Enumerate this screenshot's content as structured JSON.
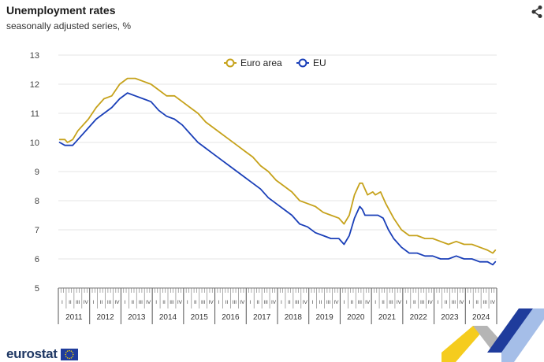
{
  "header": {
    "title": "Unemployment rates",
    "subtitle": "seasonally adjusted series, %"
  },
  "icons": {
    "share": "share-icon",
    "flag": "eu-flag-icon"
  },
  "brand": {
    "name": "eurostat"
  },
  "colors": {
    "euro_area": "#c6a21b",
    "eu": "#1a3fb8",
    "grid": "#e4e4e4",
    "axis_text": "#444444",
    "brand": "#1f3864"
  },
  "chart_data": {
    "type": "line",
    "title": "Unemployment rates",
    "subtitle": "seasonally adjusted series, %",
    "ylim": [
      5,
      13
    ],
    "yticks": [
      5,
      6,
      7,
      8,
      9,
      10,
      11,
      12,
      13
    ],
    "grid": true,
    "legend": "top-center",
    "x_start": "2011-01",
    "x_end": "2024-12",
    "x_frequency": "monthly",
    "quarter_labels": [
      "I",
      "II",
      "III",
      "IV"
    ],
    "year_labels": [
      "2011",
      "2012",
      "2013",
      "2014",
      "2015",
      "2016",
      "2017",
      "2018",
      "2019",
      "2020",
      "2021",
      "2022",
      "2023",
      "2024"
    ],
    "series": [
      {
        "name": "Euro area",
        "points": [
          [
            "2011-01",
            10.1
          ],
          [
            "2011-03",
            10.1
          ],
          [
            "2011-04",
            10.0
          ],
          [
            "2011-06",
            10.1
          ],
          [
            "2011-08",
            10.4
          ],
          [
            "2011-12",
            10.8
          ],
          [
            "2012-03",
            11.2
          ],
          [
            "2012-06",
            11.5
          ],
          [
            "2012-09",
            11.6
          ],
          [
            "2012-12",
            12.0
          ],
          [
            "2013-03",
            12.2
          ],
          [
            "2013-06",
            12.2
          ],
          [
            "2013-09",
            12.1
          ],
          [
            "2013-12",
            12.0
          ],
          [
            "2014-03",
            11.8
          ],
          [
            "2014-06",
            11.6
          ],
          [
            "2014-09",
            11.6
          ],
          [
            "2014-12",
            11.4
          ],
          [
            "2015-03",
            11.2
          ],
          [
            "2015-06",
            11.0
          ],
          [
            "2015-09",
            10.7
          ],
          [
            "2015-12",
            10.5
          ],
          [
            "2016-03",
            10.3
          ],
          [
            "2016-06",
            10.1
          ],
          [
            "2016-09",
            9.9
          ],
          [
            "2016-12",
            9.7
          ],
          [
            "2017-03",
            9.5
          ],
          [
            "2017-06",
            9.2
          ],
          [
            "2017-09",
            9.0
          ],
          [
            "2017-12",
            8.7
          ],
          [
            "2018-03",
            8.5
          ],
          [
            "2018-06",
            8.3
          ],
          [
            "2018-09",
            8.0
          ],
          [
            "2018-12",
            7.9
          ],
          [
            "2019-03",
            7.8
          ],
          [
            "2019-06",
            7.6
          ],
          [
            "2019-09",
            7.5
          ],
          [
            "2019-12",
            7.4
          ],
          [
            "2020-02",
            7.2
          ],
          [
            "2020-04",
            7.5
          ],
          [
            "2020-06",
            8.2
          ],
          [
            "2020-08",
            8.6
          ],
          [
            "2020-09",
            8.6
          ],
          [
            "2020-10",
            8.4
          ],
          [
            "2020-11",
            8.2
          ],
          [
            "2021-01",
            8.3
          ],
          [
            "2021-02",
            8.2
          ],
          [
            "2021-04",
            8.3
          ],
          [
            "2021-06",
            7.9
          ],
          [
            "2021-09",
            7.4
          ],
          [
            "2021-12",
            7.0
          ],
          [
            "2022-03",
            6.8
          ],
          [
            "2022-06",
            6.8
          ],
          [
            "2022-09",
            6.7
          ],
          [
            "2022-12",
            6.7
          ],
          [
            "2023-03",
            6.6
          ],
          [
            "2023-06",
            6.5
          ],
          [
            "2023-09",
            6.6
          ],
          [
            "2023-12",
            6.5
          ],
          [
            "2024-03",
            6.5
          ],
          [
            "2024-06",
            6.4
          ],
          [
            "2024-09",
            6.3
          ],
          [
            "2024-11",
            6.2
          ],
          [
            "2024-12",
            6.3
          ]
        ]
      },
      {
        "name": "EU",
        "points": [
          [
            "2011-01",
            10.0
          ],
          [
            "2011-03",
            9.9
          ],
          [
            "2011-06",
            9.9
          ],
          [
            "2011-08",
            10.1
          ],
          [
            "2011-12",
            10.5
          ],
          [
            "2012-03",
            10.8
          ],
          [
            "2012-06",
            11.0
          ],
          [
            "2012-09",
            11.2
          ],
          [
            "2012-12",
            11.5
          ],
          [
            "2013-03",
            11.7
          ],
          [
            "2013-06",
            11.6
          ],
          [
            "2013-09",
            11.5
          ],
          [
            "2013-12",
            11.4
          ],
          [
            "2014-03",
            11.1
          ],
          [
            "2014-06",
            10.9
          ],
          [
            "2014-09",
            10.8
          ],
          [
            "2014-12",
            10.6
          ],
          [
            "2015-03",
            10.3
          ],
          [
            "2015-06",
            10.0
          ],
          [
            "2015-09",
            9.8
          ],
          [
            "2015-12",
            9.6
          ],
          [
            "2016-03",
            9.4
          ],
          [
            "2016-06",
            9.2
          ],
          [
            "2016-09",
            9.0
          ],
          [
            "2016-12",
            8.8
          ],
          [
            "2017-03",
            8.6
          ],
          [
            "2017-06",
            8.4
          ],
          [
            "2017-09",
            8.1
          ],
          [
            "2017-12",
            7.9
          ],
          [
            "2018-03",
            7.7
          ],
          [
            "2018-06",
            7.5
          ],
          [
            "2018-09",
            7.2
          ],
          [
            "2018-12",
            7.1
          ],
          [
            "2019-03",
            6.9
          ],
          [
            "2019-06",
            6.8
          ],
          [
            "2019-09",
            6.7
          ],
          [
            "2019-12",
            6.7
          ],
          [
            "2020-02",
            6.5
          ],
          [
            "2020-04",
            6.8
          ],
          [
            "2020-06",
            7.4
          ],
          [
            "2020-08",
            7.8
          ],
          [
            "2020-09",
            7.7
          ],
          [
            "2020-10",
            7.5
          ],
          [
            "2020-12",
            7.5
          ],
          [
            "2021-03",
            7.5
          ],
          [
            "2021-05",
            7.4
          ],
          [
            "2021-07",
            7.0
          ],
          [
            "2021-09",
            6.7
          ],
          [
            "2021-12",
            6.4
          ],
          [
            "2022-03",
            6.2
          ],
          [
            "2022-06",
            6.2
          ],
          [
            "2022-09",
            6.1
          ],
          [
            "2022-12",
            6.1
          ],
          [
            "2023-03",
            6.0
          ],
          [
            "2023-06",
            6.0
          ],
          [
            "2023-09",
            6.1
          ],
          [
            "2023-12",
            6.0
          ],
          [
            "2024-03",
            6.0
          ],
          [
            "2024-06",
            5.9
          ],
          [
            "2024-09",
            5.9
          ],
          [
            "2024-11",
            5.8
          ],
          [
            "2024-12",
            5.9
          ]
        ]
      }
    ]
  }
}
